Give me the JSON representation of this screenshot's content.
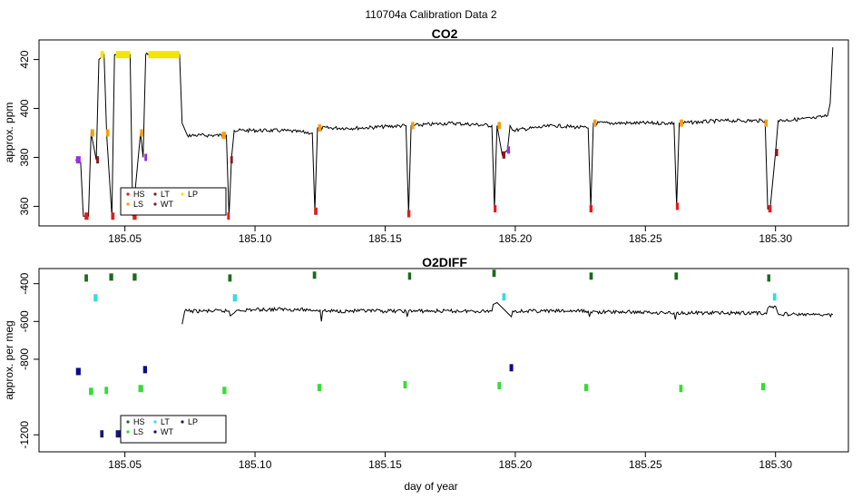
{
  "figure": {
    "suptitle": "110704a   Calibration Data 2",
    "xlabel": "day of year"
  },
  "colors": {
    "HS": "#e31a1c",
    "LS": "#f59e0b",
    "LT": "#8b1a1a",
    "WT": "#7a1f1f",
    "LP": "#f2e600",
    "purple": "#9b30d9",
    "o2_HS": "#1a6b1a",
    "o2_LS": "#33dd33",
    "o2_LT": "#33dddd",
    "o2_WT": "#0a0a8a",
    "o2_LP": "#15157a",
    "trace": "#000000"
  },
  "chart_data": [
    {
      "type": "line",
      "title": "CO2",
      "xlabel": "",
      "ylabel": "approx. ppm",
      "xlim": [
        185.017,
        185.328
      ],
      "ylim": [
        352,
        428
      ],
      "xticks": [
        185.05,
        185.1,
        185.15,
        185.2,
        185.25,
        185.3
      ],
      "xtick_labels": [
        "185.05",
        "185.10",
        "185.15",
        "185.20",
        "185.25",
        "185.30"
      ],
      "yticks": [
        360,
        380,
        400,
        420
      ],
      "ytick_labels": [
        "360",
        "380",
        "400",
        "420"
      ],
      "legend": {
        "placement": "bottom-left",
        "entries": [
          "HS",
          "LS",
          "LT",
          "WT",
          "LP"
        ],
        "marker_keys": [
          "HS",
          "LS",
          "LT",
          "WT",
          "LP"
        ]
      },
      "trace": [
        [
          185.031,
          379
        ],
        [
          185.033,
          378
        ],
        [
          185.034,
          356
        ],
        [
          185.036,
          356
        ],
        [
          185.037,
          390
        ],
        [
          185.039,
          379
        ],
        [
          185.04,
          420
        ],
        [
          185.042,
          422
        ],
        [
          185.043,
          389
        ],
        [
          185.045,
          356
        ],
        [
          185.046,
          422
        ],
        [
          185.052,
          422
        ],
        [
          185.053,
          356
        ],
        [
          185.056,
          390
        ],
        [
          185.057,
          380
        ],
        [
          185.058,
          422
        ],
        [
          185.071,
          422
        ],
        [
          185.072,
          394
        ],
        [
          185.074,
          389
        ],
        [
          185.089,
          389
        ],
        [
          185.09,
          356
        ],
        [
          185.091,
          380
        ],
        [
          185.092,
          391
        ],
        [
          185.11,
          391
        ],
        [
          185.122,
          390
        ],
        [
          185.123,
          358
        ],
        [
          185.124,
          392
        ],
        [
          185.14,
          392
        ],
        [
          185.158,
          393
        ],
        [
          185.159,
          357
        ],
        [
          185.16,
          393
        ],
        [
          185.175,
          394
        ],
        [
          185.191,
          393
        ],
        [
          185.192,
          359
        ],
        [
          185.193,
          393
        ],
        [
          185.195,
          381
        ],
        [
          185.197,
          383
        ],
        [
          185.198,
          393
        ],
        [
          185.199,
          391
        ],
        [
          185.215,
          393
        ],
        [
          185.228,
          392
        ],
        [
          185.229,
          359
        ],
        [
          185.23,
          394
        ],
        [
          185.245,
          394
        ],
        [
          185.261,
          394
        ],
        [
          185.262,
          360
        ],
        [
          185.263,
          394
        ],
        [
          185.28,
          395
        ],
        [
          185.296,
          395
        ],
        [
          185.297,
          359
        ],
        [
          185.298,
          360
        ],
        [
          185.3,
          382
        ],
        [
          185.301,
          395
        ],
        [
          185.315,
          396
        ],
        [
          185.32,
          397
        ],
        [
          185.321,
          402
        ],
        [
          185.322,
          425
        ]
      ],
      "markers": [
        {
          "key": "purple",
          "x": [
            185.0312,
            185.033
          ],
          "y": 379
        },
        {
          "key": "HS",
          "x": [
            185.0345,
            185.036
          ],
          "y": 356
        },
        {
          "key": "LS",
          "x": [
            185.0368,
            185.0382
          ],
          "y": 390
        },
        {
          "key": "LT",
          "x": [
            185.039,
            185.04
          ],
          "y": 379
        },
        {
          "key": "LP",
          "x": [
            185.0406,
            185.042
          ],
          "y": 422
        },
        {
          "key": "LS",
          "x": [
            185.0428,
            185.044
          ],
          "y": 390
        },
        {
          "key": "HS",
          "x": [
            185.0447,
            185.046
          ],
          "y": 356
        },
        {
          "key": "LP",
          "x": [
            185.0466,
            185.052
          ],
          "y": 422
        },
        {
          "key": "HS",
          "x": [
            185.053,
            185.0545
          ],
          "y": 356
        },
        {
          "key": "LS",
          "x": [
            185.0558,
            185.057
          ],
          "y": 390
        },
        {
          "key": "purple",
          "x": [
            185.0575,
            185.0585
          ],
          "y": 380
        },
        {
          "key": "LP",
          "x": [
            185.059,
            185.071
          ],
          "y": 422
        },
        {
          "key": "LS",
          "x": [
            185.0872,
            185.0888
          ],
          "y": 389
        },
        {
          "key": "HS",
          "x": [
            185.0893,
            185.0903
          ],
          "y": 356
        },
        {
          "key": "LT",
          "x": [
            185.0905,
            185.0915
          ],
          "y": 379
        },
        {
          "key": "HS",
          "x": [
            185.1227,
            185.124
          ],
          "y": 358
        },
        {
          "key": "LS",
          "x": [
            185.1242,
            185.1255
          ],
          "y": 392
        },
        {
          "key": "HS",
          "x": [
            185.1585,
            185.1597
          ],
          "y": 357
        },
        {
          "key": "LS",
          "x": [
            185.16,
            185.1612
          ],
          "y": 393
        },
        {
          "key": "HS",
          "x": [
            185.1917,
            185.1928
          ],
          "y": 359
        },
        {
          "key": "LS",
          "x": [
            185.1932,
            185.1945
          ],
          "y": 393
        },
        {
          "key": "LT",
          "x": [
            185.195,
            185.1962
          ],
          "y": 381
        },
        {
          "key": "purple",
          "x": [
            185.1968,
            185.198
          ],
          "y": 383
        },
        {
          "key": "HS",
          "x": [
            185.2285,
            185.2297
          ],
          "y": 359
        },
        {
          "key": "LS",
          "x": [
            185.23,
            185.2312
          ],
          "y": 394
        },
        {
          "key": "HS",
          "x": [
            185.2617,
            185.2628
          ],
          "y": 360
        },
        {
          "key": "LS",
          "x": [
            185.2632,
            185.2645
          ],
          "y": 394
        },
        {
          "key": "LS",
          "x": [
            185.2958,
            185.297
          ],
          "y": 394
        },
        {
          "key": "HS",
          "x": [
            185.2972,
            185.2985
          ],
          "y": 359
        },
        {
          "key": "LT",
          "x": [
            185.2998,
            185.301
          ],
          "y": 382
        }
      ]
    },
    {
      "type": "line",
      "title": "O2DIFF",
      "xlabel": "day of year",
      "ylabel": "approx. per meg",
      "xlim": [
        185.017,
        185.328
      ],
      "ylim": [
        -1290,
        -320
      ],
      "xticks": [
        185.05,
        185.1,
        185.15,
        185.2,
        185.25,
        185.3
      ],
      "xtick_labels": [
        "185.05",
        "185.10",
        "185.15",
        "185.20",
        "185.25",
        "185.30"
      ],
      "yticks": [
        -400,
        -600,
        -800,
        -1200
      ],
      "ytick_labels": [
        "-400",
        "-600",
        "-800",
        "-1200"
      ],
      "legend": {
        "placement": "bottom-left",
        "entries": [
          "HS",
          "LS",
          "LT",
          "WT",
          "LP"
        ],
        "marker_keys": [
          "o2_HS",
          "o2_LS",
          "o2_LT",
          "o2_WT",
          "o2_LP"
        ]
      },
      "trace": [
        [
          185.072,
          -615
        ],
        [
          185.073,
          -545
        ],
        [
          185.08,
          -545
        ],
        [
          185.09,
          -545
        ],
        [
          185.0905,
          -570
        ],
        [
          185.092,
          -555
        ],
        [
          185.093,
          -540
        ],
        [
          185.11,
          -535
        ],
        [
          185.125,
          -540
        ],
        [
          185.1255,
          -600
        ],
        [
          185.126,
          -545
        ],
        [
          185.14,
          -545
        ],
        [
          185.158,
          -545
        ],
        [
          185.1585,
          -575
        ],
        [
          185.159,
          -545
        ],
        [
          185.175,
          -545
        ],
        [
          185.191,
          -545
        ],
        [
          185.1915,
          -510
        ],
        [
          185.193,
          -500
        ],
        [
          185.1985,
          -575
        ],
        [
          185.199,
          -545
        ],
        [
          185.215,
          -545
        ],
        [
          185.228,
          -545
        ],
        [
          185.2285,
          -575
        ],
        [
          185.229,
          -550
        ],
        [
          185.245,
          -550
        ],
        [
          185.261,
          -555
        ],
        [
          185.2615,
          -590
        ],
        [
          185.262,
          -555
        ],
        [
          185.28,
          -555
        ],
        [
          185.296,
          -555
        ],
        [
          185.2965,
          -560
        ],
        [
          185.297,
          -530
        ],
        [
          185.3,
          -520
        ],
        [
          185.301,
          -560
        ],
        [
          185.315,
          -565
        ],
        [
          185.322,
          -565
        ]
      ],
      "markers": [
        {
          "key": "o2_WT",
          "x": [
            185.0312,
            185.033
          ],
          "y": -865
        },
        {
          "key": "o2_HS",
          "x": [
            185.0345,
            185.0358
          ],
          "y": -370
        },
        {
          "key": "o2_LS",
          "x": [
            185.0362,
            185.0378
          ],
          "y": -970
        },
        {
          "key": "o2_LT",
          "x": [
            185.038,
            185.0395
          ],
          "y": -475
        },
        {
          "key": "o2_LP",
          "x": [
            185.0405,
            185.0418
          ],
          "y": -1195
        },
        {
          "key": "o2_LS",
          "x": [
            185.0422,
            185.0435
          ],
          "y": -965
        },
        {
          "key": "o2_HS",
          "x": [
            185.044,
            185.0455
          ],
          "y": -365
        },
        {
          "key": "o2_LP",
          "x": [
            185.0465,
            185.052
          ],
          "y": -1195
        },
        {
          "key": "o2_HS",
          "x": [
            185.053,
            185.0545
          ],
          "y": -365
        },
        {
          "key": "o2_LS",
          "x": [
            185.0552,
            185.057
          ],
          "y": -955
        },
        {
          "key": "o2_WT",
          "x": [
            185.057,
            185.0585
          ],
          "y": -855
        },
        {
          "key": "o2_LS",
          "x": [
            185.0875,
            185.089
          ],
          "y": -965
        },
        {
          "key": "o2_HS",
          "x": [
            185.0897,
            185.091
          ],
          "y": -370
        },
        {
          "key": "o2_LT",
          "x": [
            185.0915,
            185.093
          ],
          "y": -475
        },
        {
          "key": "o2_HS",
          "x": [
            185.1222,
            185.1235
          ],
          "y": -355
        },
        {
          "key": "o2_LS",
          "x": [
            185.124,
            185.1255
          ],
          "y": -950
        },
        {
          "key": "o2_LS",
          "x": [
            185.157,
            185.1583
          ],
          "y": -935
        },
        {
          "key": "o2_HS",
          "x": [
            185.1588,
            185.16
          ],
          "y": -360
        },
        {
          "key": "o2_HS",
          "x": [
            185.1912,
            185.1925
          ],
          "y": -345
        },
        {
          "key": "o2_LS",
          "x": [
            185.1932,
            185.1945
          ],
          "y": -940
        },
        {
          "key": "o2_LT",
          "x": [
            185.195,
            185.1963
          ],
          "y": -470
        },
        {
          "key": "o2_WT",
          "x": [
            185.1978,
            185.1992
          ],
          "y": -845
        },
        {
          "key": "o2_LS",
          "x": [
            185.2265,
            185.228
          ],
          "y": -950
        },
        {
          "key": "o2_HS",
          "x": [
            185.2285,
            185.2298
          ],
          "y": -360
        },
        {
          "key": "o2_HS",
          "x": [
            185.2612,
            185.2625
          ],
          "y": -360
        },
        {
          "key": "o2_LS",
          "x": [
            185.263,
            185.2643
          ],
          "y": -955
        },
        {
          "key": "o2_LS",
          "x": [
            185.2945,
            185.296
          ],
          "y": -945
        },
        {
          "key": "o2_HS",
          "x": [
            185.2968,
            185.298
          ],
          "y": -370
        },
        {
          "key": "o2_LT",
          "x": [
            185.299,
            185.3003
          ],
          "y": -470
        }
      ]
    }
  ]
}
